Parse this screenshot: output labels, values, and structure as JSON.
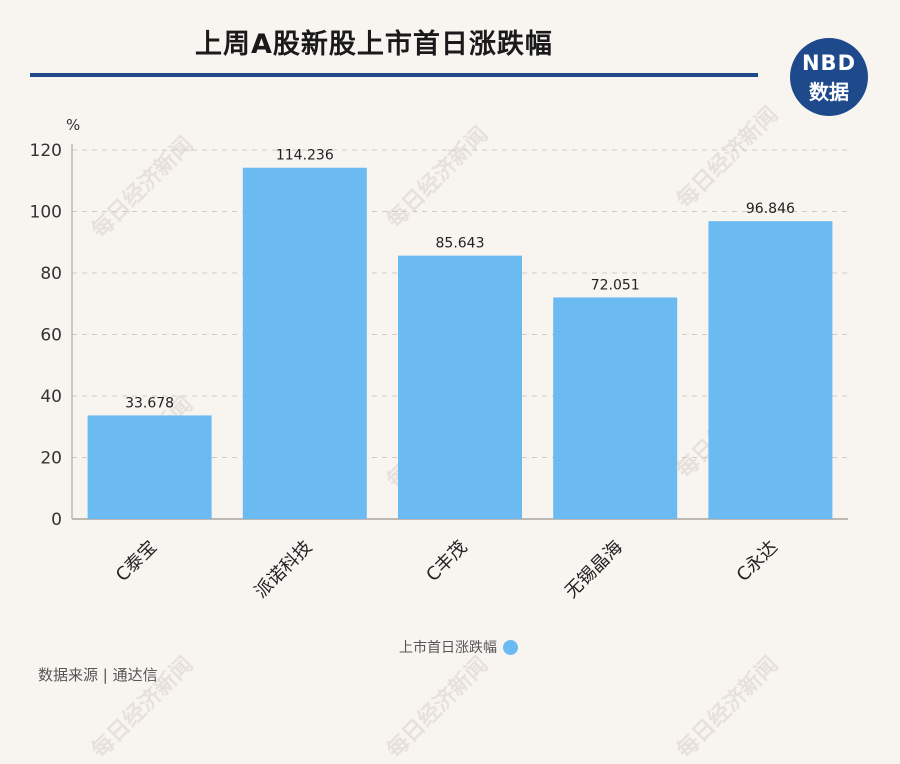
{
  "header": {
    "title": "上周A股新股上市首日涨跌幅"
  },
  "logo": {
    "line1": "NBD",
    "line2": "数据"
  },
  "watermark": "每日经济新闻",
  "source": "数据来源 | 通达信",
  "chart_data": {
    "type": "bar",
    "categories": [
      "C泰宝",
      "派诺科技",
      "C丰茂",
      "无锡晶海",
      "C永达"
    ],
    "values": [
      33.678,
      114.236,
      85.643,
      72.051,
      96.846
    ],
    "value_labels": [
      "33.678",
      "114.236",
      "85.643",
      "72.051",
      "96.846"
    ],
    "y_unit": "%",
    "ylim": [
      0,
      120
    ],
    "yticks": [
      0,
      20,
      40,
      60,
      80,
      100,
      120
    ],
    "grid": true,
    "legend": "bottom",
    "series": [
      {
        "name": "上市首日涨跌幅",
        "color": "#6bbaf2"
      }
    ]
  }
}
